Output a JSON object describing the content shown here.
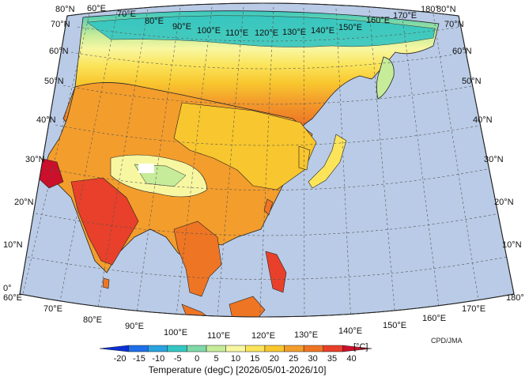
{
  "map": {
    "region": "Asia",
    "projection": "conic",
    "ocean_color": "#b9cbe6",
    "land_outline_color": "#222222",
    "graticule_color": "#555555",
    "lon_labels": [
      "60°E",
      "70°E",
      "80°E",
      "90°E",
      "100°E",
      "110°E",
      "120°E",
      "130°E",
      "140°E",
      "150°E",
      "160°E",
      "170°E",
      "180°"
    ],
    "lat_labels": [
      "0°",
      "10°N",
      "20°N",
      "30°N",
      "40°N",
      "50°N",
      "60°N",
      "70°N",
      "80°N"
    ],
    "credit": "CPD/JMA",
    "field": "Temperature"
  },
  "colorbar": {
    "unit": "[°C]",
    "ticks": [
      "-20",
      "-15",
      "-10",
      "-5",
      "0",
      "5",
      "10",
      "15",
      "20",
      "25",
      "30",
      "35",
      "40"
    ],
    "colors": [
      "#0a2fd6",
      "#1e6fe8",
      "#2aa3e0",
      "#34c6c2",
      "#7fd8a8",
      "#c6ec9a",
      "#f7f7a2",
      "#fbe45a",
      "#f8c62e",
      "#f39d2c",
      "#ee7524",
      "#e8402a",
      "#cc0f2a"
    ],
    "title": "Temperature (degC) [2026/05/01-2026/10]"
  }
}
